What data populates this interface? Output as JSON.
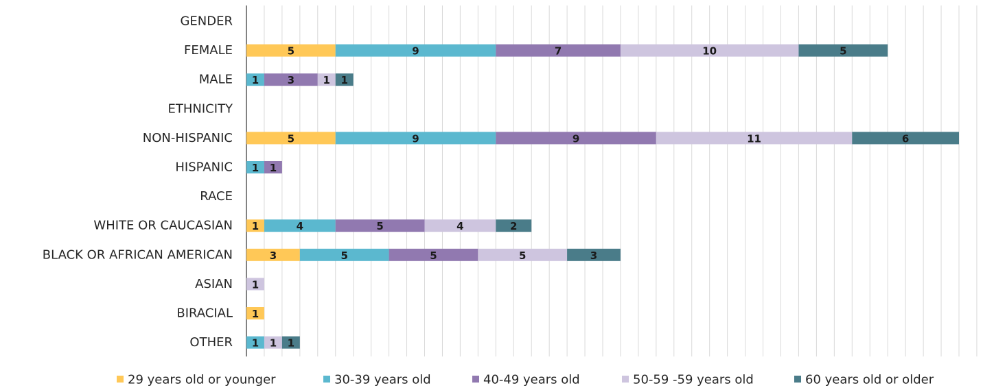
{
  "chart_data": {
    "type": "bar",
    "orientation": "horizontal",
    "stacked": true,
    "title": "",
    "xlabel": "",
    "ylabel": "",
    "xlim": [
      0,
      41
    ],
    "grid": true,
    "legend_position": "bottom",
    "categories": [
      "GENDER",
      "FEMALE",
      "MALE",
      "ETHNICITY",
      "NON-HISPANIC",
      "HISPANIC",
      "RACE",
      "WHITE OR CAUCASIAN",
      "BLACK OR AFRICAN AMERICAN",
      "ASIAN",
      "BIRACIAL",
      "OTHER"
    ],
    "series": [
      {
        "name": "29 years old or younger",
        "color": "#FFC857",
        "values": [
          null,
          5,
          null,
          null,
          5,
          null,
          null,
          1,
          3,
          null,
          1,
          null
        ]
      },
      {
        "name": "30-39 years old",
        "color": "#5BB8CF",
        "values": [
          null,
          9,
          1,
          null,
          9,
          1,
          null,
          4,
          5,
          null,
          null,
          1
        ]
      },
      {
        "name": "40-49 years old",
        "color": "#9179B0",
        "values": [
          null,
          7,
          3,
          null,
          9,
          1,
          null,
          5,
          5,
          null,
          null,
          null
        ]
      },
      {
        "name": "50-59 -59 years old",
        "color": "#CEC5DF",
        "values": [
          null,
          10,
          1,
          null,
          11,
          null,
          null,
          4,
          5,
          1,
          null,
          1
        ]
      },
      {
        "name": "60 years old or older",
        "color": "#4A7C89",
        "values": [
          null,
          5,
          1,
          null,
          6,
          null,
          null,
          2,
          3,
          null,
          null,
          1
        ]
      }
    ]
  }
}
